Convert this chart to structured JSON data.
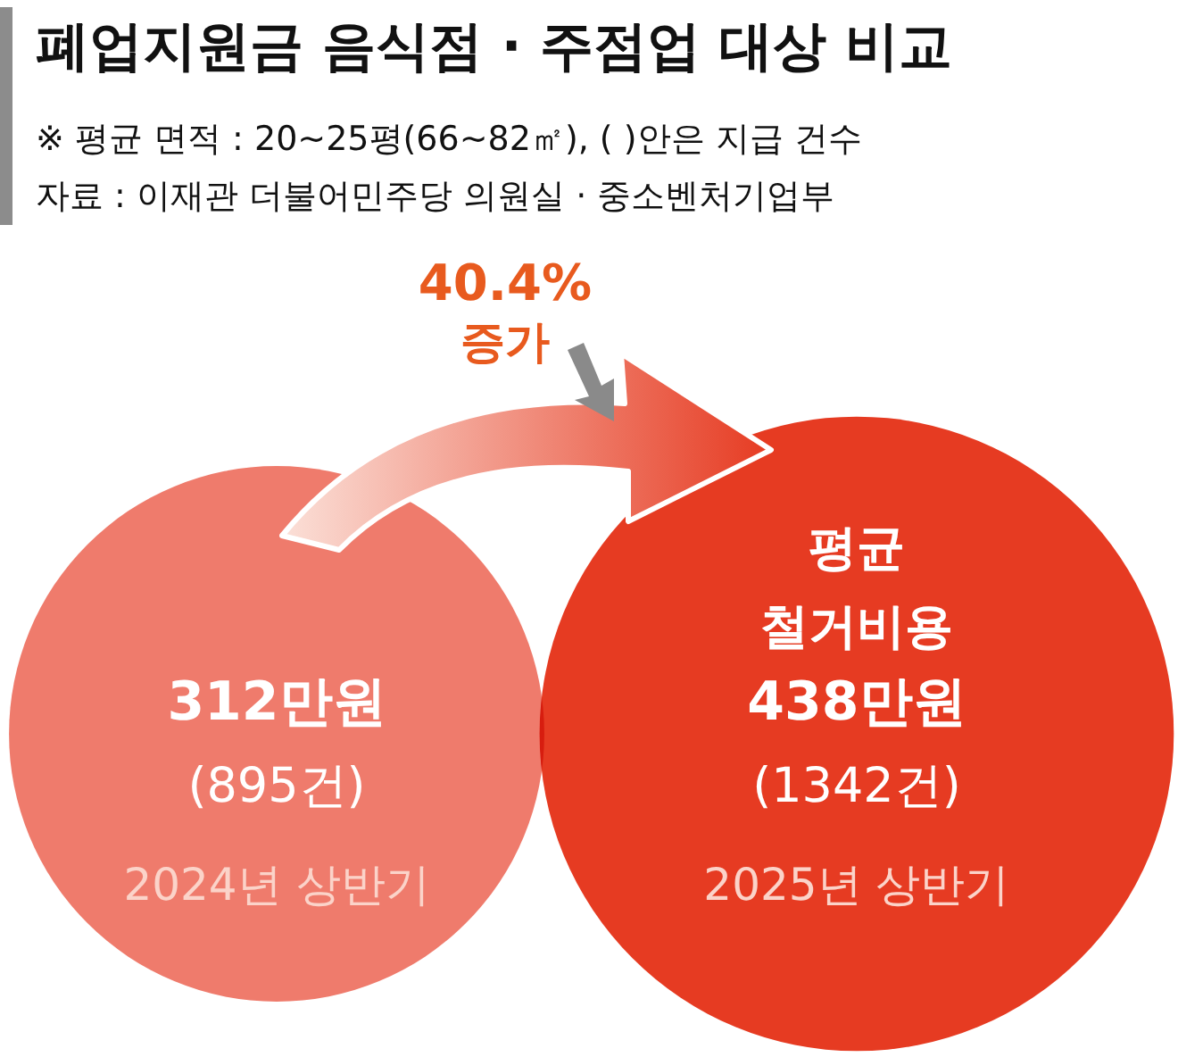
{
  "chart_data": {
    "type": "other",
    "title": "폐업지원금 음식점 · 주점업 대상 비교",
    "subtitle": "※ 평균 면적 : 20~25평(66~82㎡), (   )안은 지급 건수",
    "categories": [
      "2024년 상반기",
      "2025년 상반기"
    ],
    "series": [
      {
        "name": "평균\n철거비용",
        "values": [
          312,
          438
        ],
        "colors": [
          "#ef7b6c",
          "#e63b22"
        ],
        "value_labels": [
          "312만원",
          "438만원"
        ]
      }
    ],
    "annotations": [
      "자료 : 이재관 더불어민주당 의원실 · 중소벤처기업부",
      "40.4%\n증가",
      {
        "text": "(895건)",
        "x": "2024년 상반기"
      },
      {
        "text": "(1342건)",
        "x": "2025년 상반기"
      }
    ]
  }
}
